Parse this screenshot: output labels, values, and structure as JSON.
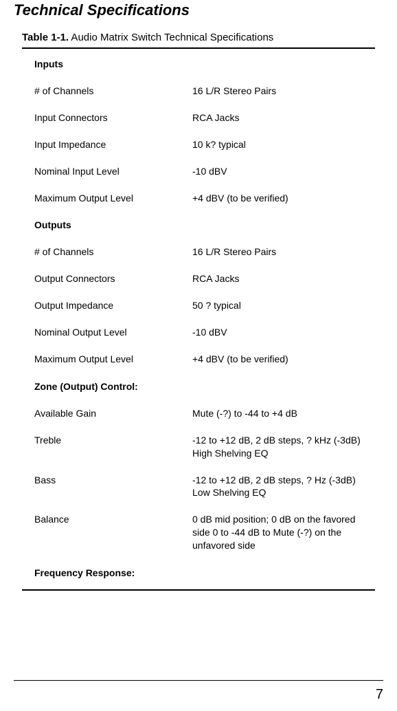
{
  "page": {
    "heading": "Technical Specifications",
    "table_caption_num": "Table 1-1.",
    "table_caption_text": " Audio Matrix Switch Technical Specifications",
    "page_number": "7"
  },
  "sections": [
    {
      "title": "Inputs",
      "rows": [
        {
          "label": "# of Channels",
          "value": "16 L/R Stereo Pairs"
        },
        {
          "label": "Input Connectors",
          "value": "RCA Jacks"
        },
        {
          "label": "Input Impedance",
          "value": "10 k? typical"
        },
        {
          "label": "Nominal Input Level",
          "value": "-10 dBV"
        },
        {
          "label": "Maximum Output Level",
          "value": "+4 dBV (to be verified)"
        }
      ]
    },
    {
      "title": "Outputs",
      "rows": [
        {
          "label": "# of Channels",
          "value": "16 L/R Stereo Pairs"
        },
        {
          "label": "Output Connectors",
          "value": "RCA Jacks"
        },
        {
          "label": "Output Impedance",
          "value": "50 ? typical"
        },
        {
          "label": "Nominal Output Level",
          "value": "-10 dBV"
        },
        {
          "label": "Maximum Output Level",
          "value": "+4 dBV (to be verified)"
        }
      ]
    },
    {
      "title": "Zone (Output) Control:",
      "rows": [
        {
          "label": "Available Gain",
          "value": "Mute (-?) to -44 to +4 dB"
        },
        {
          "label": "Treble",
          "value": "-12 to +12 dB, 2 dB steps, ? kHz (-3dB) High Shelving EQ"
        },
        {
          "label": "Bass",
          "value": "-12 to +12 dB, 2 dB steps, ? Hz (-3dB) Low Shelving EQ"
        },
        {
          "label": "Balance",
          "value": "0 dB mid position; 0 dB on the favored side 0 to -44 dB to Mute (-?) on the unfavored side"
        }
      ]
    },
    {
      "title": "Frequency Response:",
      "rows": []
    }
  ]
}
